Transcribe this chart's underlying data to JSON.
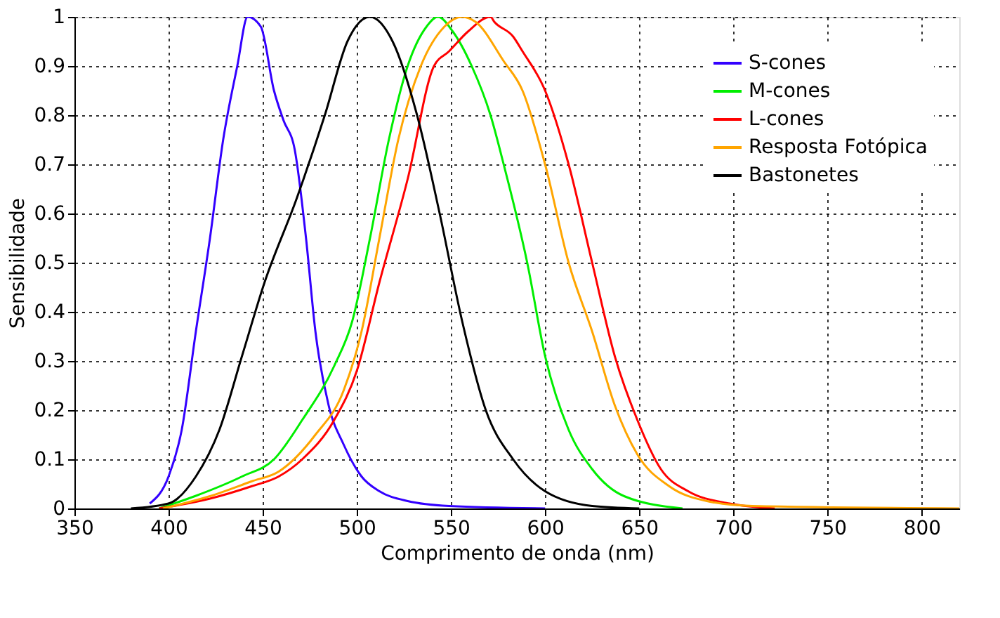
{
  "chart_data": {
    "type": "line",
    "xlabel": "Comprimento de onda (nm)",
    "ylabel": "Sensibilidade",
    "xlim": [
      350,
      820
    ],
    "xticks": [
      350,
      400,
      450,
      500,
      550,
      600,
      650,
      700,
      750,
      800
    ],
    "ylim": [
      0,
      1
    ],
    "yticks": [
      0,
      0.1,
      0.2,
      0.3,
      0.4,
      0.5,
      0.6,
      0.7,
      0.8,
      0.9,
      1
    ],
    "grid": true,
    "legend": "top right",
    "marker": "none",
    "line_style": "solid",
    "series": [
      {
        "name": "S-cones",
        "color": "#3300ff",
        "x": [
          390,
          400,
          407,
          414.5,
          422,
          429,
          436.5,
          442,
          449,
          456,
          461,
          467,
          473,
          478,
          485,
          493,
          502.5,
          512,
          527,
          549,
          600
        ],
        "values": [
          0.01,
          0.065,
          0.16,
          0.36,
          0.55,
          0.75,
          0.9,
          1.0,
          0.98,
          0.85,
          0.79,
          0.73,
          0.55,
          0.36,
          0.21,
          0.13,
          0.065,
          0.035,
          0.015,
          0.005,
          0
        ]
      },
      {
        "name": "M-cones",
        "color": "#00ee00",
        "x": [
          395,
          414,
          439,
          456,
          471,
          488,
          497.5,
          507,
          517,
          527,
          537,
          543,
          551,
          561,
          571,
          578,
          590.5,
          600,
          612.5,
          625,
          642,
          673
        ],
        "values": [
          0,
          0.025,
          0.065,
          0.1,
          0.18,
          0.29,
          0.38,
          0.55,
          0.75,
          0.9,
          0.98,
          1.0,
          0.97,
          0.9,
          0.8,
          0.7,
          0.5,
          0.31,
          0.16,
          0.08,
          0.025,
          0
        ]
      },
      {
        "name": "L-cones",
        "color": "#ff0000",
        "x": [
          395,
          422,
          444,
          458.5,
          471,
          488,
          500,
          512,
          527,
          541,
          549,
          559,
          571,
          573,
          583,
          588,
          600,
          612.5,
          625,
          637,
          649,
          661.5,
          676,
          698,
          722
        ],
        "values": [
          0,
          0.02,
          0.045,
          0.065,
          0.1,
          0.18,
          0.28,
          0.46,
          0.67,
          0.9,
          0.93,
          0.97,
          1.0,
          0.99,
          0.96,
          0.93,
          0.85,
          0.7,
          0.5,
          0.31,
          0.18,
          0.08,
          0.035,
          0.01,
          0
        ]
      },
      {
        "name": "Resposta Fotópica",
        "color": "#ffa500",
        "x": [
          397,
          422,
          444,
          458.5,
          478,
          493,
          502.5,
          512,
          522,
          534,
          546.5,
          556,
          563,
          578,
          588,
          600,
          612.5,
          625,
          637,
          649,
          666,
          686,
          710,
          820
        ],
        "values": [
          0,
          0.025,
          0.055,
          0.075,
          0.15,
          0.24,
          0.36,
          0.55,
          0.75,
          0.9,
          0.98,
          1.0,
          0.99,
          0.91,
          0.85,
          0.7,
          0.5,
          0.36,
          0.21,
          0.11,
          0.045,
          0.015,
          0.005,
          0
        ]
      },
      {
        "name": "Bastonetes",
        "color": "#000000",
        "x": [
          380,
          400,
          414.5,
          427,
          439,
          451,
          468,
          483,
          495,
          507,
          519,
          532,
          544,
          556,
          568.5,
          583,
          600,
          625,
          650
        ],
        "values": [
          0,
          0.01,
          0.065,
          0.16,
          0.31,
          0.46,
          0.63,
          0.8,
          0.95,
          1.0,
          0.95,
          0.8,
          0.6,
          0.38,
          0.2,
          0.1,
          0.035,
          0.005,
          0
        ]
      }
    ]
  }
}
